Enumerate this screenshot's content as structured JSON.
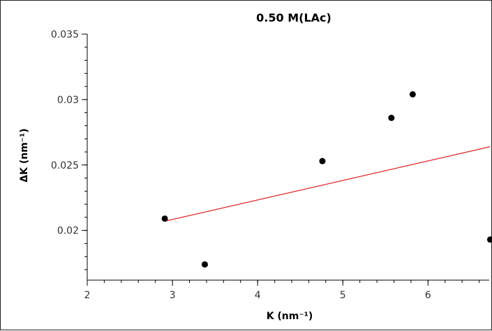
{
  "chart_data": {
    "type": "scatter",
    "title": "0.50 M(LAc)",
    "xlabel": "K (nm⁻¹)",
    "ylabel": "ΔK (nm⁻¹)",
    "xlim": [
      2,
      6.8
    ],
    "ylim": [
      0.0162,
      0.035
    ],
    "x_ticks": [
      2,
      3,
      4,
      5,
      6
    ],
    "x_tick_labels": [
      "2",
      "3",
      "4",
      "5",
      "6"
    ],
    "y_ticks": [
      0.02,
      0.025,
      0.03,
      0.035
    ],
    "y_tick_labels": [
      "0.02",
      "0.025",
      "0.03",
      "0.035"
    ],
    "grid": false,
    "series": [
      {
        "kind": "points",
        "color": "#000000",
        "points": [
          {
            "x": 2.91,
            "y": 0.0209
          },
          {
            "x": 3.38,
            "y": 0.0174
          },
          {
            "x": 4.76,
            "y": 0.0253
          },
          {
            "x": 5.57,
            "y": 0.0286
          },
          {
            "x": 5.82,
            "y": 0.0304
          },
          {
            "x": 6.73,
            "y": 0.0193
          }
        ]
      },
      {
        "kind": "fit-line",
        "color": "#e02020",
        "points": [
          {
            "x": 2.91,
            "y": 0.0207
          },
          {
            "x": 6.73,
            "y": 0.0264
          }
        ]
      }
    ]
  }
}
